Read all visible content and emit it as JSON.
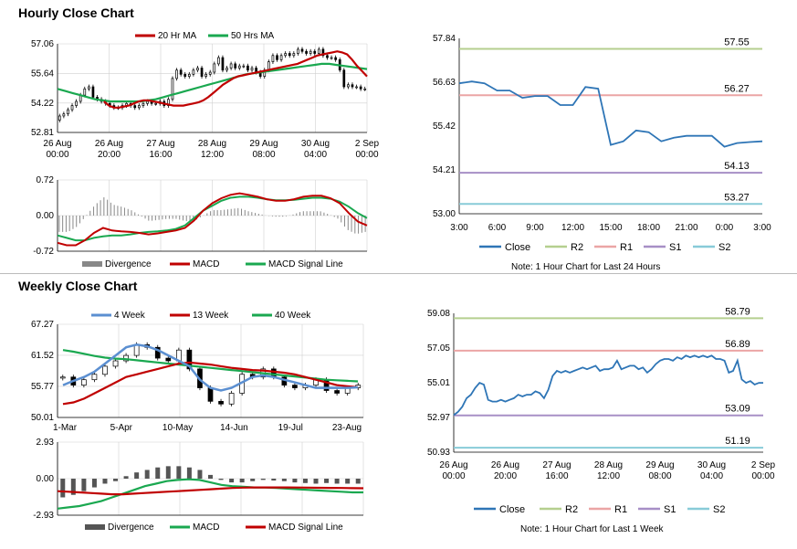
{
  "sections": {
    "hourly_title": "Hourly Close Chart",
    "weekly_title": "Weekly Close Chart"
  },
  "notes": {
    "pivot24": "Note: 1 Hour Chart for Last 24 Hours",
    "pivotweek": "Note: 1 Hour Chart for Last 1 Week"
  },
  "colors": {
    "ma20": "#c00000",
    "ma50": "#1aa850",
    "close": "#2e75b6",
    "r2": "#b5cf8f",
    "r1": "#eba5a5",
    "s1": "#a78fc6",
    "s2": "#88cbd8",
    "w4": "#5b8fd1",
    "grid": "#d0d0d0",
    "divergence": "#888888"
  },
  "chart_data": [
    {
      "id": "hourly_price",
      "type": "candlestick",
      "title": "",
      "legend": [
        "20 Hr MA",
        "50 Hrs MA"
      ],
      "y_ticks": [
        52.81,
        54.22,
        55.64,
        57.06
      ],
      "ylim": [
        52.81,
        57.06
      ],
      "x_ticks": [
        "26 Aug\n00:00",
        "26 Aug\n20:00",
        "27 Aug\n16:00",
        "28 Aug\n12:00",
        "29 Aug\n08:00",
        "30 Aug\n04:00",
        "2 Sep\n00:00"
      ],
      "close": [
        53.6,
        53.7,
        53.9,
        54.1,
        54.3,
        54.6,
        54.9,
        55.0,
        54.5,
        54.4,
        54.3,
        54.2,
        54.1,
        54.0,
        54.0,
        54.1,
        54.2,
        54.1,
        54.0,
        54.1,
        54.2,
        54.3,
        54.2,
        54.2,
        54.3,
        54.1,
        54.4,
        55.4,
        55.8,
        55.6,
        55.5,
        55.6,
        55.8,
        55.9,
        55.5,
        55.6,
        55.7,
        56.1,
        56.4,
        55.8,
        55.9,
        56.1,
        55.9,
        56.0,
        56.0,
        55.8,
        55.9,
        55.7,
        55.5,
        55.8,
        56.2,
        56.5,
        56.3,
        56.5,
        56.6,
        56.5,
        56.6,
        56.8,
        56.7,
        56.6,
        56.7,
        56.6,
        56.8,
        56.5,
        56.4,
        56.4,
        56.3,
        55.8,
        55.0,
        55.1,
        55.0,
        55.0,
        54.9,
        54.9
      ],
      "ma20": [
        54.3,
        54.1,
        54.0,
        54.0,
        54.05,
        54.1,
        54.2,
        54.3,
        54.35,
        54.35,
        54.3,
        54.25,
        54.2,
        54.15,
        54.1,
        54.1,
        54.1,
        54.15,
        54.2,
        54.25,
        54.35,
        54.5,
        54.7,
        54.9,
        55.1,
        55.25,
        55.4,
        55.5,
        55.55,
        55.6,
        55.65,
        55.7,
        55.75,
        55.8,
        55.85,
        55.9,
        55.95,
        56.0,
        56.05,
        56.1,
        56.2,
        56.3,
        56.4,
        56.5,
        56.55,
        56.6,
        56.65,
        56.7,
        56.65,
        56.55,
        56.3,
        56.0,
        55.75,
        55.5
      ],
      "ma50": [
        54.9,
        54.8,
        54.7,
        54.6,
        54.5,
        54.4,
        54.35,
        54.3,
        54.3,
        54.3,
        54.3,
        54.3,
        54.35,
        54.4,
        54.5,
        54.6,
        54.7,
        54.8,
        54.9,
        55.0,
        55.1,
        55.2,
        55.3,
        55.4,
        55.5,
        55.6,
        55.65,
        55.7,
        55.75,
        55.8,
        55.85,
        55.9,
        55.95,
        56.0,
        56.05,
        56.1,
        56.1,
        56.05,
        56.0,
        55.95,
        55.9,
        55.85
      ]
    },
    {
      "id": "hourly_macd",
      "type": "macd",
      "legend": [
        "Divergence",
        "MACD",
        "MACD Signal Line"
      ],
      "y_ticks": [
        -0.72,
        0.0,
        0.72
      ],
      "ylim": [
        -0.72,
        0.72
      ],
      "macd": [
        -0.55,
        -0.6,
        -0.6,
        -0.5,
        -0.35,
        -0.25,
        -0.3,
        -0.32,
        -0.33,
        -0.35,
        -0.38,
        -0.36,
        -0.33,
        -0.3,
        -0.25,
        -0.1,
        0.1,
        0.25,
        0.35,
        0.42,
        0.45,
        0.42,
        0.38,
        0.33,
        0.3,
        0.3,
        0.33,
        0.38,
        0.4,
        0.4,
        0.35,
        0.25,
        0.05,
        -0.12,
        -0.2
      ],
      "signal": [
        -0.4,
        -0.45,
        -0.5,
        -0.5,
        -0.45,
        -0.42,
        -0.4,
        -0.4,
        -0.38,
        -0.35,
        -0.33,
        -0.32,
        -0.3,
        -0.27,
        -0.2,
        -0.05,
        0.1,
        0.2,
        0.3,
        0.36,
        0.38,
        0.38,
        0.36,
        0.33,
        0.31,
        0.31,
        0.32,
        0.34,
        0.36,
        0.36,
        0.34,
        0.28,
        0.18,
        0.05,
        -0.05
      ]
    },
    {
      "id": "pivot_24h",
      "type": "line",
      "y_ticks": [
        53.0,
        54.21,
        55.42,
        56.63,
        57.84
      ],
      "ylim": [
        53.0,
        57.84
      ],
      "x_ticks": [
        "3:00",
        "6:00",
        "9:00",
        "12:00",
        "15:00",
        "18:00",
        "21:00",
        "0:00",
        "3:00"
      ],
      "levels": [
        {
          "name": "R2",
          "value": 57.55,
          "label": "57.55"
        },
        {
          "name": "R1",
          "value": 56.27,
          "label": "56.27"
        },
        {
          "name": "S1",
          "value": 54.13,
          "label": "54.13"
        },
        {
          "name": "S2",
          "value": 53.27,
          "label": "53.27"
        }
      ],
      "legend": [
        "Close",
        "R2",
        "R1",
        "S1",
        "S2"
      ],
      "close": [
        56.6,
        56.65,
        56.6,
        56.4,
        56.4,
        56.2,
        56.25,
        56.25,
        56.0,
        56.0,
        56.5,
        56.45,
        54.9,
        55.0,
        55.3,
        55.25,
        55.0,
        55.1,
        55.15,
        55.15,
        55.15,
        54.85,
        54.95,
        54.98,
        55.0
      ]
    },
    {
      "id": "weekly_price",
      "type": "candlestick",
      "legend": [
        "4 Week",
        "13 Week",
        "40 Week"
      ],
      "y_ticks": [
        50.01,
        55.77,
        61.52,
        67.27
      ],
      "ylim": [
        50.01,
        67.27
      ],
      "x_ticks": [
        "1-Mar",
        "5-Apr",
        "10-May",
        "14-Jun",
        "19-Jul",
        "23-Aug"
      ],
      "close": [
        57.5,
        56.0,
        57.0,
        58.0,
        59.5,
        60.5,
        61.5,
        63.5,
        63.0,
        61.0,
        60.5,
        62.5,
        59.0,
        55.5,
        53.0,
        52.5,
        54.5,
        58.0,
        57.5,
        59.0,
        57.5,
        56.0,
        55.5,
        56.0,
        57.0,
        55.0,
        54.5,
        55.5,
        56.0
      ],
      "w4": [
        56.0,
        56.8,
        57.5,
        58.5,
        60.0,
        61.5,
        63.0,
        63.5,
        63.2,
        62.5,
        61.5,
        60.5,
        59.5,
        57.0,
        55.5,
        55.0,
        55.5,
        56.5,
        57.5,
        57.8,
        57.5,
        57.0,
        56.5,
        56.0,
        55.5,
        55.5,
        55.5,
        55.5,
        55.6
      ],
      "w13": [
        52.5,
        52.8,
        53.5,
        54.5,
        55.5,
        56.5,
        57.5,
        58.0,
        58.5,
        59.0,
        59.5,
        60.0,
        60.2,
        60.0,
        59.8,
        59.5,
        59.2,
        59.0,
        58.8,
        58.7,
        58.5,
        58.3,
        58.0,
        57.5,
        57.0,
        56.5,
        56.0,
        55.8,
        55.6
      ],
      "w40": [
        62.5,
        62.2,
        61.8,
        61.4,
        61.1,
        60.9,
        60.8,
        60.6,
        60.4,
        60.2,
        60.0,
        59.8,
        59.6,
        59.4,
        59.2,
        59.0,
        58.8,
        58.6,
        58.4,
        58.2,
        58.0,
        57.8,
        57.6,
        57.4,
        57.2,
        57.0,
        56.9,
        56.8,
        56.7
      ]
    },
    {
      "id": "weekly_macd",
      "type": "macd",
      "legend": [
        "Divergence",
        "MACD",
        "MACD Signal Line"
      ],
      "y_ticks": [
        -2.93,
        0.0,
        2.93
      ],
      "ylim": [
        -2.93,
        2.93
      ],
      "divergence": [
        -1.5,
        -1.3,
        -1.0,
        -0.7,
        -0.4,
        -0.2,
        0.2,
        0.5,
        0.7,
        0.9,
        1.0,
        1.0,
        0.9,
        0.7,
        0.3,
        -0.1,
        -0.3,
        -0.3,
        -0.2,
        -0.1,
        -0.15,
        -0.2,
        -0.3,
        -0.35,
        -0.4,
        -0.35,
        -0.4,
        -0.4,
        -0.4
      ],
      "macd": [
        -2.4,
        -2.3,
        -2.2,
        -2.0,
        -1.8,
        -1.5,
        -1.2,
        -0.9,
        -0.6,
        -0.4,
        -0.2,
        -0.1,
        -0.05,
        -0.1,
        -0.3,
        -0.5,
        -0.6,
        -0.65,
        -0.7,
        -0.7,
        -0.75,
        -0.8,
        -0.85,
        -0.9,
        -0.95,
        -1.0,
        -1.05,
        -1.1,
        -1.1
      ],
      "signal": [
        -1.0,
        -1.05,
        -1.1,
        -1.15,
        -1.2,
        -1.25,
        -1.25,
        -1.2,
        -1.15,
        -1.1,
        -1.05,
        -1.0,
        -0.95,
        -0.9,
        -0.85,
        -0.8,
        -0.75,
        -0.72,
        -0.7,
        -0.7,
        -0.7,
        -0.7,
        -0.71,
        -0.72,
        -0.73,
        -0.74,
        -0.75,
        -0.76,
        -0.77
      ]
    },
    {
      "id": "pivot_week",
      "type": "line",
      "y_ticks": [
        50.93,
        52.97,
        55.01,
        57.05,
        59.08
      ],
      "ylim": [
        50.93,
        59.08
      ],
      "x_ticks": [
        "26 Aug\n00:00",
        "26 Aug\n20:00",
        "27 Aug\n16:00",
        "28 Aug\n12:00",
        "29 Aug\n08:00",
        "30 Aug\n04:00",
        "2 Sep\n00:00"
      ],
      "levels": [
        {
          "name": "R2",
          "value": 58.79,
          "label": "58.79"
        },
        {
          "name": "R1",
          "value": 56.89,
          "label": "56.89"
        },
        {
          "name": "S1",
          "value": 53.09,
          "label": "53.09"
        },
        {
          "name": "S2",
          "value": 51.19,
          "label": "51.19"
        }
      ],
      "legend": [
        "Close",
        "R2",
        "R1",
        "S1",
        "S2"
      ],
      "close": [
        53.1,
        53.3,
        53.6,
        54.1,
        54.3,
        54.7,
        55.0,
        54.9,
        54.0,
        53.9,
        53.9,
        54.0,
        53.9,
        54.0,
        54.1,
        54.3,
        54.2,
        54.3,
        54.3,
        54.5,
        54.4,
        54.1,
        54.6,
        55.4,
        55.7,
        55.6,
        55.7,
        55.6,
        55.7,
        55.8,
        55.9,
        55.8,
        55.9,
        56.0,
        55.7,
        55.8,
        55.8,
        55.9,
        56.3,
        55.8,
        55.9,
        56.0,
        56.0,
        55.8,
        55.9,
        55.6,
        55.8,
        56.1,
        56.3,
        56.4,
        56.4,
        56.3,
        56.5,
        56.4,
        56.6,
        56.5,
        56.6,
        56.5,
        56.6,
        56.5,
        56.6,
        56.4,
        56.4,
        56.3,
        55.6,
        55.7,
        56.3,
        55.2,
        55.0,
        55.1,
        54.9,
        55.0,
        55.0
      ]
    }
  ]
}
